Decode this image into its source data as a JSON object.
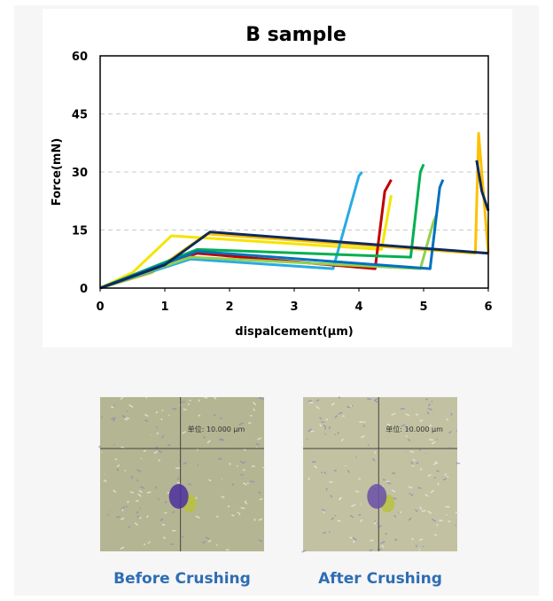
{
  "chart_data": {
    "type": "line",
    "title": "B sample",
    "x_label": "dispalcement(μm)",
    "y_label": "Force(mN)",
    "xlim": [
      0,
      6
    ],
    "xticks": [
      0,
      1,
      2,
      3,
      4,
      5,
      6
    ],
    "ylim": [
      0,
      60
    ],
    "yticks": [
      0,
      15,
      30,
      45,
      60
    ],
    "grid": true,
    "series": [
      {
        "color": "#f5e400",
        "x": [
          0,
          0.5,
          1.1,
          4.35,
          4.5
        ],
        "values": [
          0,
          4,
          13.5,
          10,
          24
        ]
      },
      {
        "color": "#ffc000",
        "x": [
          0,
          0.8,
          1.65,
          5.8,
          5.85,
          6
        ],
        "values": [
          0,
          4,
          14,
          9,
          40,
          9
        ]
      },
      {
        "color": "#29abe2",
        "x": [
          0,
          1.4,
          3.6,
          4,
          4.05
        ],
        "values": [
          0,
          7.5,
          5,
          29,
          30
        ]
      },
      {
        "color": "#c00000",
        "x": [
          0,
          1.5,
          4.25,
          4.4,
          4.5
        ],
        "values": [
          0,
          9,
          5,
          25,
          28
        ]
      },
      {
        "color": "#00b050",
        "x": [
          0,
          1.5,
          4.8,
          4.95,
          5
        ],
        "values": [
          0,
          10,
          8,
          30,
          32
        ]
      },
      {
        "color": "#92d050",
        "x": [
          0,
          1.4,
          4.95,
          5.15,
          5.2
        ],
        "values": [
          0,
          8,
          5,
          17,
          19
        ]
      },
      {
        "color": "#0070c0",
        "x": [
          0,
          1.5,
          5.1,
          5.25,
          5.3
        ],
        "values": [
          0,
          9.5,
          5,
          26,
          28
        ]
      },
      {
        "color": "#0d2a5c",
        "x": [
          0,
          1,
          1.7,
          6
        ],
        "values": [
          0,
          6,
          14.5,
          9
        ]
      },
      {
        "color": "#0d2a5c",
        "x": [
          5.82,
          5.9,
          6
        ],
        "values": [
          33,
          25,
          20
        ]
      }
    ]
  },
  "images": [
    {
      "label": "Before Crushing",
      "scale": "单位: 10.000 μm"
    },
    {
      "label": "After Crushing",
      "scale": "单位: 10.000 μm"
    }
  ]
}
